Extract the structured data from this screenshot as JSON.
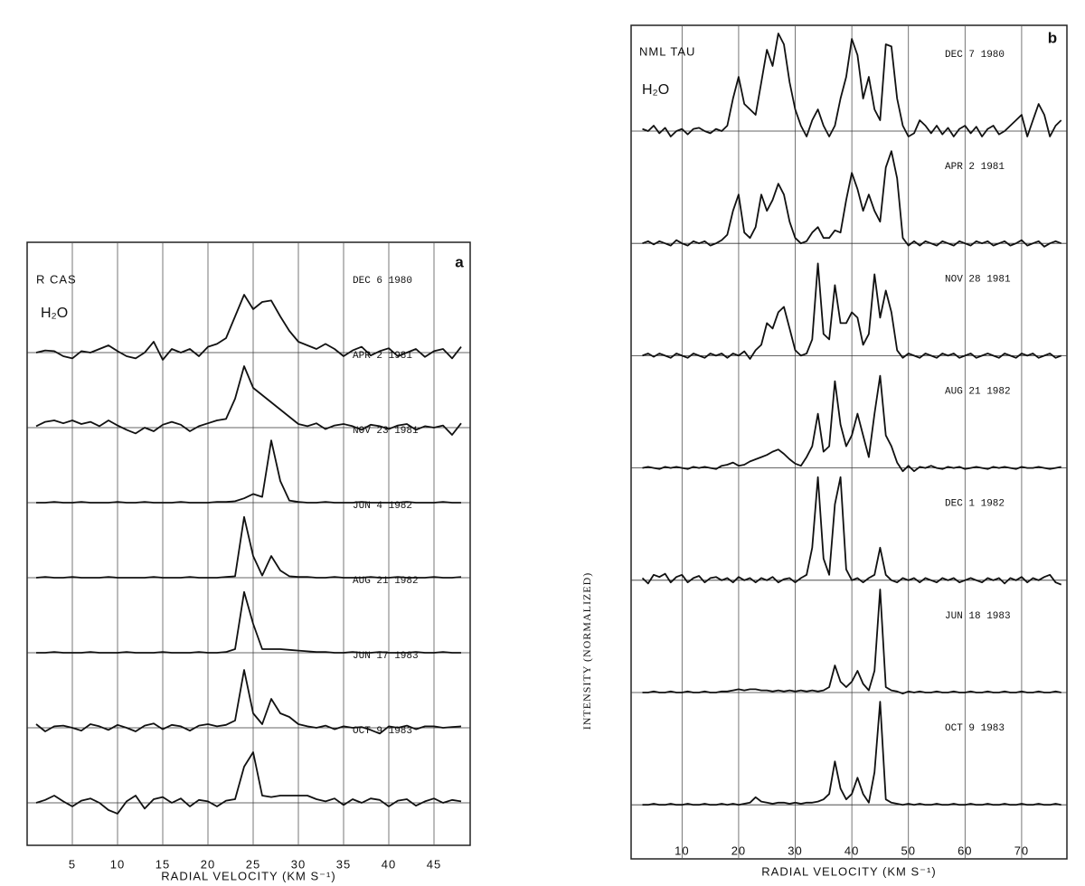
{
  "chart_data": [
    {
      "type": "line",
      "panel_label": "a",
      "object": "R CAS",
      "molecule": "H₂O",
      "x_label": "RADIAL VELOCITY (KM S⁻¹)",
      "xlim": [
        0,
        49
      ],
      "xticks": [
        5,
        10,
        15,
        20,
        25,
        30,
        35,
        40,
        45
      ],
      "grid": true,
      "color": "#111111",
      "x": [
        1,
        2,
        3,
        4,
        5,
        6,
        7,
        8,
        9,
        10,
        11,
        12,
        13,
        14,
        15,
        16,
        17,
        18,
        19,
        20,
        21,
        22,
        23,
        24,
        25,
        26,
        27,
        28,
        29,
        30,
        31,
        32,
        33,
        34,
        35,
        36,
        37,
        38,
        39,
        40,
        41,
        42,
        43,
        44,
        45,
        46,
        47,
        48
      ],
      "series": [
        {
          "name": "DEC 6 1980",
          "values": [
            0,
            0.03,
            0.02,
            -0.05,
            -0.08,
            0.02,
            0,
            0.05,
            0.1,
            0.02,
            -0.05,
            -0.08,
            0,
            0.15,
            -0.1,
            0.05,
            0,
            0.05,
            -0.05,
            0.08,
            0.12,
            0.2,
            0.5,
            0.8,
            0.6,
            0.7,
            0.72,
            0.5,
            0.3,
            0.15,
            0.1,
            0.05,
            0.12,
            0.05,
            -0.05,
            0.03,
            0.08,
            -0.04,
            0.02,
            0.06,
            -0.05,
            0,
            0.05,
            -0.06,
            0.02,
            0.05,
            -0.08,
            0.08
          ]
        },
        {
          "name": "APR 2 1981",
          "values": [
            0.02,
            0.08,
            0.1,
            0.06,
            0.1,
            0.05,
            0.08,
            0.02,
            0.1,
            0.03,
            -0.03,
            -0.08,
            0,
            -0.05,
            0.04,
            0.08,
            0.04,
            -0.05,
            0.02,
            0.06,
            0.1,
            0.12,
            0.4,
            0.85,
            0.55,
            0.45,
            0.35,
            0.25,
            0.15,
            0.05,
            0.02,
            0.06,
            -0.02,
            0.03,
            0.05,
            0.02,
            -0.03,
            0.04,
            0.02,
            -0.02,
            0.03,
            0.05,
            -0.03,
            0.02,
            0,
            0.03,
            -0.1,
            0.06
          ]
        },
        {
          "name": "NOV 23 1981",
          "values": [
            0,
            0,
            0.01,
            0,
            0,
            0.01,
            0,
            0,
            0,
            0.01,
            0,
            0,
            0.01,
            0,
            0,
            0,
            0.01,
            0,
            0,
            0,
            0.01,
            0.01,
            0.02,
            0.06,
            0.12,
            0.08,
            0.86,
            0.3,
            0.03,
            0.01,
            0,
            0,
            0.01,
            0,
            0,
            0,
            0.01,
            0,
            0,
            0,
            0,
            0.01,
            0,
            0,
            0,
            0.01,
            0,
            0
          ]
        },
        {
          "name": "JUN 4 1982",
          "values": [
            0,
            0.01,
            0,
            0,
            0.01,
            0,
            0,
            0,
            0.01,
            0,
            0,
            0,
            0,
            0.01,
            0,
            0,
            0,
            0.01,
            0,
            0,
            0,
            0.01,
            0.02,
            0.84,
            0.3,
            0.03,
            0.3,
            0.1,
            0.02,
            0.01,
            0.01,
            0,
            0,
            0.01,
            0,
            0,
            0,
            0.01,
            0,
            0,
            0.01,
            0,
            0,
            0,
            0.01,
            0,
            0,
            0.01
          ]
        },
        {
          "name": "AUG 21 1982",
          "values": [
            0,
            0,
            0.01,
            0,
            0,
            0,
            0.01,
            0,
            0,
            0,
            0.01,
            0,
            0,
            0,
            0.01,
            0,
            0,
            0,
            0.01,
            0,
            0,
            0.01,
            0.05,
            0.84,
            0.4,
            0.05,
            0.05,
            0.05,
            0.04,
            0.03,
            0.02,
            0.01,
            0.01,
            0,
            0,
            0.01,
            0,
            0,
            0.01,
            0,
            0,
            0,
            0.01,
            0,
            0,
            0.01,
            0,
            0
          ]
        },
        {
          "name": "JUN 17 1983",
          "values": [
            0.05,
            -0.05,
            0.02,
            0.03,
            0,
            -0.04,
            0.05,
            0.02,
            -0.03,
            0.04,
            0,
            -0.05,
            0.03,
            0.06,
            -0.02,
            0.04,
            0.02,
            -0.04,
            0.03,
            0.05,
            0.02,
            0.04,
            0.1,
            0.8,
            0.2,
            0.05,
            0.4,
            0.2,
            0.15,
            0.05,
            0.02,
            0,
            0.03,
            -0.02,
            0.02,
            0,
            0.01,
            -0.03,
            -0.08,
            0.02,
            0,
            0.03,
            -0.02,
            0.02,
            0.02,
            0,
            0.01,
            0.02
          ]
        },
        {
          "name": "OCT 9 1983",
          "values": [
            0,
            0.04,
            0.1,
            0.02,
            -0.05,
            0.03,
            0.06,
            0,
            -0.1,
            -0.15,
            0.02,
            0.1,
            -0.08,
            0.05,
            0.08,
            0,
            0.06,
            -0.05,
            0.04,
            0.02,
            -0.05,
            0.03,
            0.05,
            0.5,
            0.7,
            0.1,
            0.08,
            0.1,
            0.1,
            0.1,
            0.1,
            0.05,
            0.02,
            0.06,
            -0.03,
            0.05,
            0,
            0.06,
            0.04,
            -0.05,
            0.03,
            0.05,
            -0.04,
            0.02,
            0.06,
            0,
            0.04,
            0.02
          ]
        }
      ]
    },
    {
      "type": "line",
      "panel_label": "b",
      "object": "NML TAU",
      "molecule": "H₂O",
      "x_label": "RADIAL VELOCITY (KM S⁻¹)",
      "y_label": "INTENSITY (NORMALIZED)",
      "xlim": [
        1,
        78
      ],
      "xticks": [
        10,
        20,
        30,
        40,
        50,
        60,
        70
      ],
      "grid": true,
      "color": "#111111",
      "x": [
        3,
        4,
        5,
        6,
        7,
        8,
        9,
        10,
        11,
        12,
        13,
        14,
        15,
        16,
        17,
        18,
        19,
        20,
        21,
        22,
        23,
        24,
        25,
        26,
        27,
        28,
        29,
        30,
        31,
        32,
        33,
        34,
        35,
        36,
        37,
        38,
        39,
        40,
        41,
        42,
        43,
        44,
        45,
        46,
        47,
        48,
        49,
        50,
        51,
        52,
        53,
        54,
        55,
        56,
        57,
        58,
        59,
        60,
        61,
        62,
        63,
        64,
        65,
        66,
        67,
        68,
        69,
        70,
        71,
        72,
        73,
        74,
        75,
        76,
        77
      ],
      "series": [
        {
          "name": "DEC 7 1980",
          "values": [
            0.02,
            0,
            0.05,
            -0.02,
            0.03,
            -0.05,
            0,
            0.02,
            -0.03,
            0.02,
            0.03,
            0,
            -0.02,
            0.02,
            0,
            0.05,
            0.3,
            0.5,
            0.25,
            0.2,
            0.15,
            0.45,
            0.75,
            0.6,
            0.9,
            0.8,
            0.45,
            0.2,
            0.05,
            -0.05,
            0.1,
            0.2,
            0.05,
            -0.05,
            0.05,
            0.3,
            0.5,
            0.85,
            0.7,
            0.3,
            0.5,
            0.2,
            0.1,
            0.8,
            0.78,
            0.3,
            0.05,
            -0.05,
            -0.02,
            0.1,
            0.05,
            -0.02,
            0.05,
            -0.03,
            0.03,
            -0.05,
            0.02,
            0.05,
            -0.02,
            0.04,
            -0.05,
            0.02,
            0.05,
            -0.03,
            0,
            0.05,
            0.1,
            0.15,
            -0.05,
            0.1,
            0.25,
            0.15,
            -0.05,
            0.05,
            0.1
          ]
        },
        {
          "name": "APR 2 1981",
          "values": [
            0,
            0.02,
            -0.01,
            0.02,
            0,
            -0.02,
            0.03,
            0,
            -0.02,
            0.02,
            0,
            0.02,
            -0.02,
            0,
            0.03,
            0.08,
            0.3,
            0.45,
            0.1,
            0.05,
            0.15,
            0.45,
            0.3,
            0.4,
            0.55,
            0.45,
            0.2,
            0.05,
            0,
            0.02,
            0.1,
            0.15,
            0.05,
            0.05,
            0.12,
            0.1,
            0.4,
            0.65,
            0.5,
            0.3,
            0.45,
            0.3,
            0.2,
            0.7,
            0.85,
            0.6,
            0.05,
            -0.02,
            0.02,
            -0.02,
            0.02,
            0,
            -0.02,
            0.02,
            0,
            -0.02,
            0.02,
            0,
            -0.02,
            0.02,
            0,
            0.02,
            -0.02,
            0,
            0.02,
            -0.02,
            0,
            0.03,
            -0.02,
            0,
            0.02,
            -0.03,
            0,
            0.02,
            0
          ]
        },
        {
          "name": "NOV 28 1981",
          "values": [
            0,
            0.02,
            -0.01,
            0.02,
            0,
            -0.02,
            0.02,
            0,
            -0.02,
            0.02,
            0,
            -0.02,
            0.02,
            0,
            0.02,
            -0.02,
            0.02,
            0,
            0.04,
            -0.03,
            0.05,
            0.1,
            0.3,
            0.25,
            0.4,
            0.45,
            0.25,
            0.05,
            0,
            0.02,
            0.15,
            0.85,
            0.2,
            0.15,
            0.65,
            0.3,
            0.3,
            0.4,
            0.35,
            0.1,
            0.2,
            0.75,
            0.35,
            0.6,
            0.4,
            0.05,
            -0.02,
            0.02,
            0,
            -0.02,
            0.02,
            0,
            -0.02,
            0.02,
            0,
            0.02,
            -0.02,
            0,
            0.02,
            -0.02,
            0,
            0.02,
            0,
            -0.02,
            0.02,
            0,
            -0.02,
            0.02,
            0,
            0.02,
            -0.02,
            0,
            0.02,
            -0.02,
            0
          ]
        },
        {
          "name": "AUG 21 1982",
          "values": [
            0,
            0.01,
            0,
            -0.01,
            0.01,
            0,
            0.01,
            0,
            -0.01,
            0.01,
            0,
            0.01,
            0,
            -0.01,
            0.02,
            0.03,
            0.05,
            0.02,
            0.03,
            0.06,
            0.08,
            0.1,
            0.12,
            0.15,
            0.17,
            0.13,
            0.08,
            0.04,
            0.02,
            0.1,
            0.2,
            0.5,
            0.15,
            0.2,
            0.8,
            0.4,
            0.2,
            0.3,
            0.5,
            0.3,
            0.1,
            0.5,
            0.85,
            0.3,
            0.2,
            0.05,
            -0.03,
            0.02,
            -0.03,
            0.01,
            0,
            0.02,
            0,
            -0.01,
            0.01,
            0,
            0.01,
            -0.01,
            0,
            0.01,
            0,
            -0.01,
            0.01,
            0,
            0.01,
            0,
            -0.01,
            0.01,
            0,
            0,
            0.01,
            0,
            -0.01,
            0,
            0.01
          ]
        },
        {
          "name": "DEC 1 1982",
          "values": [
            0.02,
            -0.03,
            0.05,
            0.03,
            0.06,
            -0.02,
            0.03,
            0.05,
            -0.02,
            0.02,
            0.04,
            -0.02,
            0.02,
            0.03,
            0,
            0.02,
            -0.02,
            0.03,
            0,
            0.02,
            -0.02,
            0.02,
            0,
            0.03,
            -0.02,
            0.01,
            0.02,
            -0.02,
            0.02,
            0.05,
            0.3,
            0.95,
            0.2,
            0.05,
            0.7,
            0.95,
            0.1,
            0,
            0.02,
            -0.02,
            0.02,
            0.05,
            0.3,
            0.05,
            0,
            -0.02,
            0.02,
            0,
            0.02,
            -0.02,
            0.02,
            0,
            -0.02,
            0.02,
            0,
            0.02,
            -0.02,
            0,
            0.02,
            0,
            -0.02,
            0.02,
            0,
            0.02,
            -0.03,
            0.02,
            0,
            0.03,
            -0.02,
            0.02,
            0,
            0.03,
            0.05,
            -0.02,
            -0.04
          ]
        },
        {
          "name": "JUN 18 1983",
          "values": [
            0,
            0,
            0.01,
            0,
            0,
            0.01,
            0,
            0,
            0.01,
            0,
            0,
            0.01,
            0,
            0,
            0.01,
            0.01,
            0.02,
            0.03,
            0.02,
            0.03,
            0.03,
            0.02,
            0.02,
            0.01,
            0.02,
            0.01,
            0.02,
            0.01,
            0.02,
            0.01,
            0.02,
            0.01,
            0.02,
            0.05,
            0.25,
            0.1,
            0.05,
            0.1,
            0.2,
            0.08,
            0.02,
            0.2,
            0.95,
            0.05,
            0.02,
            0.01,
            -0.01,
            0.01,
            0,
            0.01,
            0,
            0,
            0.01,
            0,
            0,
            0.01,
            0,
            0,
            0.01,
            0,
            0,
            0.01,
            0,
            0,
            0.01,
            0,
            0,
            0.01,
            0,
            0,
            0.01,
            0,
            0,
            0.01,
            0
          ]
        },
        {
          "name": "OCT 9 1983",
          "values": [
            0,
            0,
            0.01,
            0,
            0,
            0.01,
            0,
            0,
            0.01,
            0,
            0,
            0.01,
            0,
            0,
            0.01,
            0,
            0.01,
            0,
            0.01,
            0.02,
            0.07,
            0.03,
            0.02,
            0.01,
            0.02,
            0.02,
            0.01,
            0.02,
            0.01,
            0.02,
            0.02,
            0.03,
            0.05,
            0.1,
            0.4,
            0.15,
            0.05,
            0.1,
            0.25,
            0.1,
            0.02,
            0.3,
            0.95,
            0.05,
            0.02,
            0.01,
            0,
            0.01,
            0,
            0.01,
            0,
            0,
            0.01,
            0,
            0,
            0.01,
            0,
            0,
            0.01,
            0,
            0,
            0.01,
            0,
            0,
            0.01,
            0,
            0,
            0.01,
            0,
            0,
            0.01,
            0,
            0,
            0.01,
            0
          ]
        }
      ]
    }
  ]
}
